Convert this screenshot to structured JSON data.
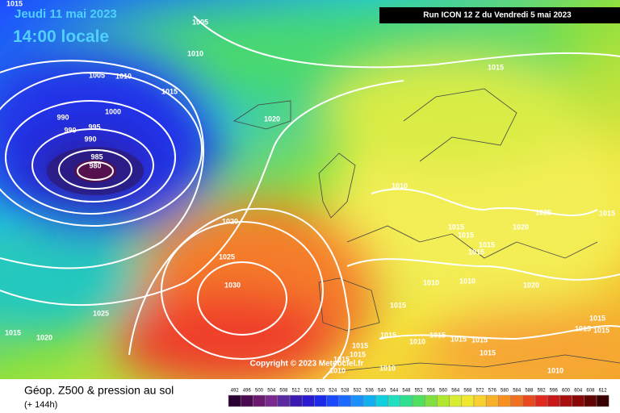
{
  "header": {
    "date": "Jeudi 11 mai 2023",
    "time": "14:00 locale",
    "run": "Run ICON 12 Z du Vendredi 5 mai 2023"
  },
  "copyright": "Copyright © 2023 Meteociel.fr",
  "footer": {
    "title": "Géop. Z500 & pression au sol",
    "subtitle": "(+ 144h)"
  },
  "scale": [
    492,
    496,
    500,
    504,
    508,
    512,
    516,
    520,
    524,
    528,
    532,
    536,
    540,
    544,
    548,
    552,
    556,
    560,
    564,
    568,
    572,
    576,
    580,
    584,
    588,
    592,
    596,
    600,
    604,
    608,
    612
  ],
  "isobar_labels": [
    1015,
    1005,
    1010,
    1005,
    1010,
    1015,
    1000,
    990,
    990,
    995,
    990,
    985,
    980,
    1020,
    1015,
    1010,
    1025,
    1020,
    1015,
    1020,
    1015,
    1015,
    1015,
    1025,
    1030,
    1010,
    1010,
    1020,
    1015,
    1025,
    1015,
    1020,
    1015,
    1015,
    1015,
    1010,
    1015,
    1015,
    1015,
    1015,
    1015,
    1010,
    1010,
    1010,
    1015,
    1015,
    1015,
    1015
  ]
}
